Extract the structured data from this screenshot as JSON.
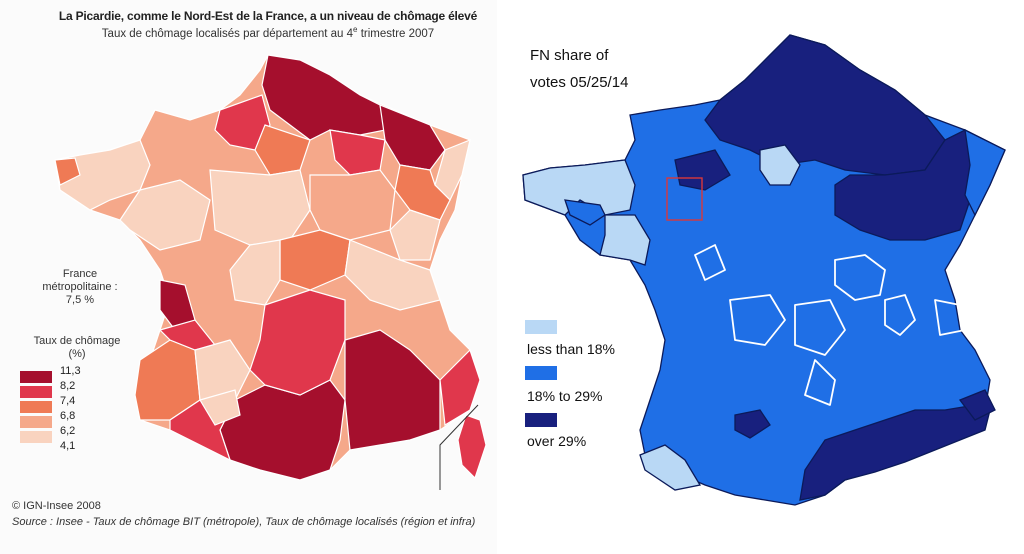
{
  "left_map": {
    "title": "La Picardie, comme le Nord-Est de la France, a un niveau de chômage élevé",
    "subtitle_main": "Taux de chômage localisés par département au 4",
    "subtitle_sup": "e",
    "subtitle_end": " trimestre 2007",
    "france_label_1": "France",
    "france_label_2": "métropolitaine :",
    "france_label_3": "7,5 %",
    "legend_title_1": "Taux de chômage",
    "legend_title_2": "(%)",
    "legend_ticks": [
      "11,3",
      "8,2",
      "7,4",
      "6,8",
      "6,2",
      "4,1"
    ],
    "legend_colors": [
      "#a50f2d",
      "#e0374c",
      "#ef7a55",
      "#f5a88a",
      "#f9d3bf"
    ],
    "copyright": "© IGN-Insee 2008",
    "source": "Source : Insee - Taux de chômage BIT (métropole), Taux de chômage localisés (région et infra)"
  },
  "right_map": {
    "title_line1": "FN share of",
    "title_line2": "votes 05/25/14",
    "legend": [
      {
        "label": "less than 18%",
        "color": "#b9d8f5"
      },
      {
        "label": "18% to 29%",
        "color": "#1f6fe6"
      },
      {
        "label": "over 29%",
        "color": "#18207e"
      }
    ]
  }
}
